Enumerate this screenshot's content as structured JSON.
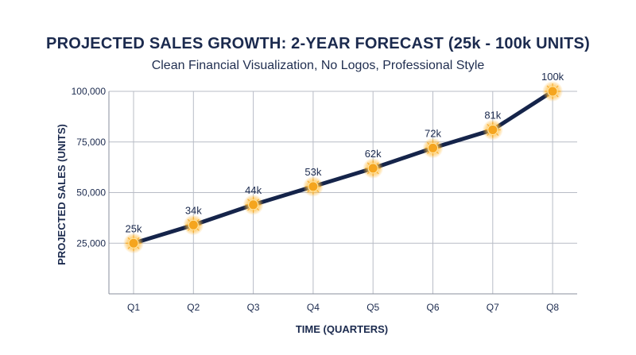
{
  "chart_data": {
    "type": "line",
    "title": "PROJECTED SALES GROWTH: 2-YEAR FORECAST (25k - 100k UNITS)",
    "subtitle": "Clean Financial Visualization, No Logos, Professional Style",
    "xlabel": "TIME (QUARTERS)",
    "ylabel": "PROJECTED SALES (UNITS)",
    "categories": [
      "Q1",
      "Q2",
      "Q3",
      "Q4",
      "Q5",
      "Q6",
      "Q7",
      "Q8"
    ],
    "series": [
      {
        "values": [
          25000,
          34000,
          44000,
          53000,
          62000,
          72000,
          81000,
          100000
        ],
        "labels": [
          "25k",
          "34k",
          "44k",
          "53k",
          "62k",
          "72k",
          "81k",
          "100k"
        ]
      }
    ],
    "yticks": [
      25000,
      50000,
      75000,
      100000
    ],
    "ytick_labels": [
      "25,000",
      "50,000",
      "75,000",
      "100,000"
    ],
    "ylim": [
      0,
      100000
    ],
    "grid": true,
    "colors": {
      "line": "#15244a",
      "marker": "#f5a51e",
      "marker_glow": "#ffd27a",
      "grid": "#b8bcc6",
      "text": "#1b2a4e"
    }
  }
}
